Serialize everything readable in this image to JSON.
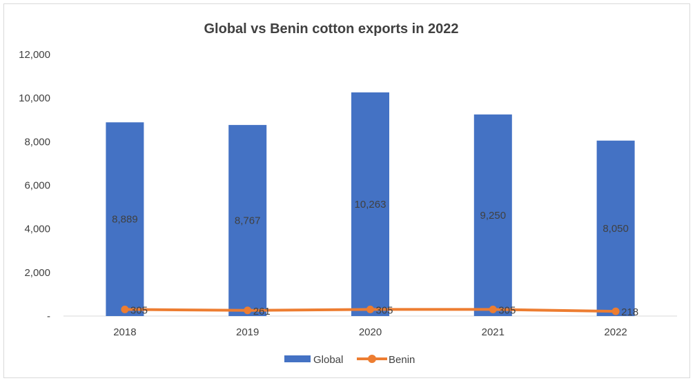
{
  "chart_data": {
    "type": "bar",
    "title": "Global vs Benin cotton exports in 2022",
    "categories": [
      "2018",
      "2019",
      "2020",
      "2021",
      "2022"
    ],
    "series": [
      {
        "name": "Global",
        "type": "bar",
        "color": "#4472C4",
        "values": [
          8889,
          8767,
          10263,
          9250,
          8050
        ],
        "labels": [
          "8,889",
          "8,767",
          "10,263",
          "9,250",
          "8,050"
        ]
      },
      {
        "name": "Benin",
        "type": "line",
        "color": "#ED7D31",
        "values": [
          305,
          261,
          305,
          305,
          218
        ],
        "labels": [
          "305",
          "261",
          "305",
          "305",
          "218"
        ]
      }
    ],
    "ylim": [
      0,
      12000
    ],
    "yticks": [
      0,
      2000,
      4000,
      6000,
      8000,
      10000,
      12000
    ],
    "ytick_labels": [
      "-",
      "2,000",
      "4,000",
      "6,000",
      "8,000",
      "10,000",
      "12,000"
    ],
    "grid": false,
    "legend": "bottom"
  }
}
